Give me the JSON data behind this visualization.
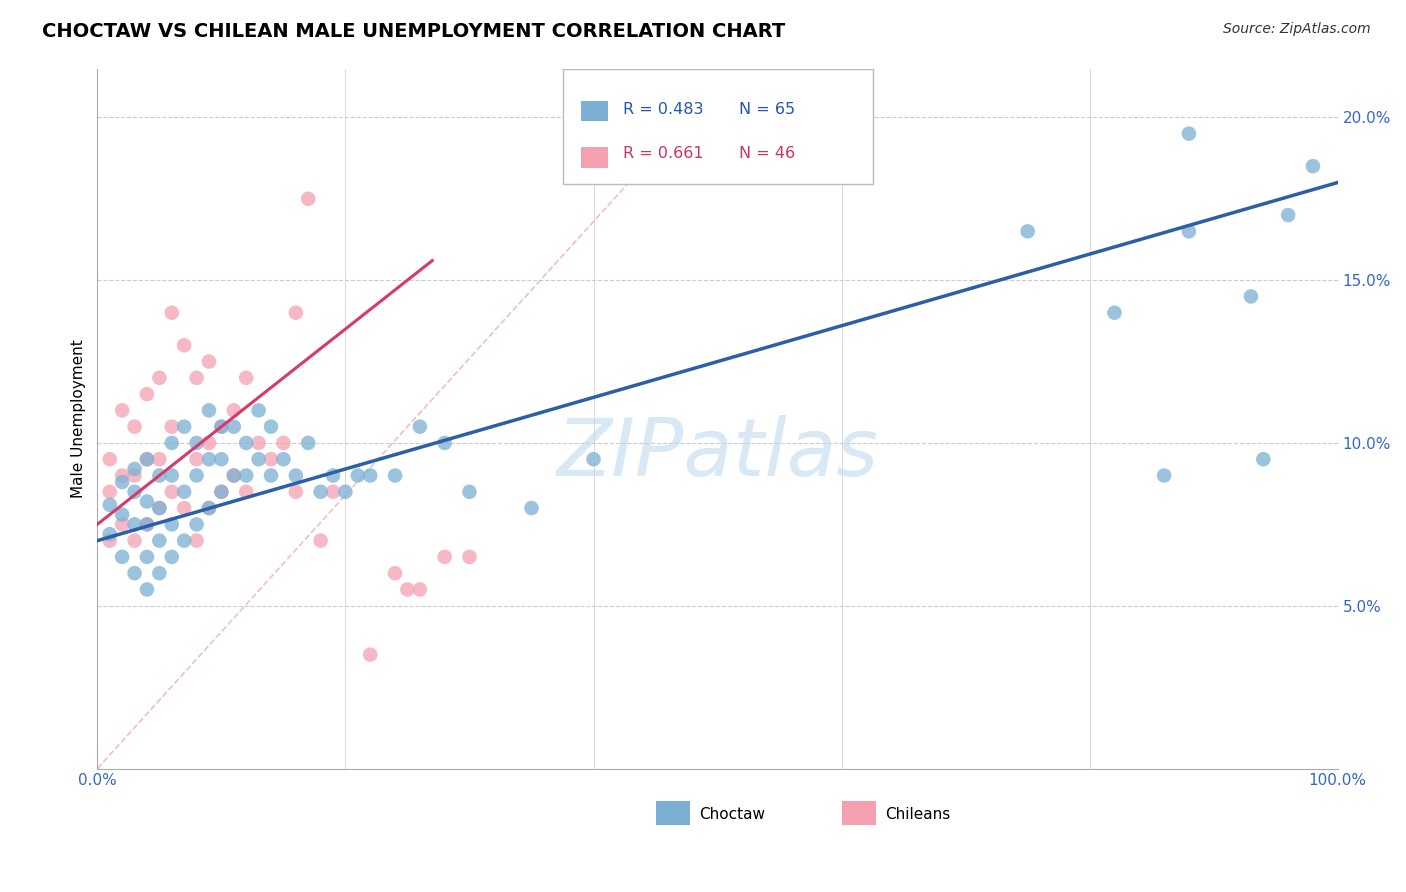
{
  "title": "CHOCTAW VS CHILEAN MALE UNEMPLOYMENT CORRELATION CHART",
  "source": "Source: ZipAtlas.com",
  "ylabel": "Male Unemployment",
  "xlim": [
    0.0,
    100.0
  ],
  "ylim": [
    0.0,
    21.5
  ],
  "blue_color": "#7BAFD4",
  "pink_color": "#F4A0B0",
  "blue_line_color": "#2B5FA8",
  "pink_line_color": "#D63A6A",
  "diag_color": "#E8B0BB",
  "grid_color": "#CCCCCC",
  "watermark": "ZIPatlas",
  "watermark_color": "#BEDAEE",
  "legend_R1": "R = 0.483",
  "legend_N1": "N = 65",
  "legend_R2": "R = 0.661",
  "legend_N2": "N = 46",
  "legend_label1": "Choctaw",
  "legend_label2": "Chileans",
  "blue_scatter_x": [
    1,
    1,
    2,
    2,
    2,
    3,
    3,
    3,
    3,
    4,
    4,
    4,
    4,
    4,
    5,
    5,
    5,
    5,
    6,
    6,
    6,
    6,
    7,
    7,
    7,
    8,
    8,
    8,
    9,
    9,
    9,
    10,
    10,
    10,
    11,
    11,
    12,
    12,
    13,
    13,
    14,
    14,
    15,
    16,
    17,
    18,
    19,
    20,
    21,
    22,
    24,
    26,
    28,
    30,
    35,
    40,
    75,
    82,
    86,
    88,
    88,
    93,
    94,
    96,
    98
  ],
  "blue_scatter_y": [
    7.2,
    8.1,
    6.5,
    7.8,
    8.8,
    6.0,
    7.5,
    8.5,
    9.2,
    5.5,
    6.5,
    7.5,
    8.2,
    9.5,
    6.0,
    7.0,
    8.0,
    9.0,
    6.5,
    7.5,
    9.0,
    10.0,
    7.0,
    8.5,
    10.5,
    7.5,
    9.0,
    10.0,
    8.0,
    9.5,
    11.0,
    8.5,
    9.5,
    10.5,
    9.0,
    10.5,
    9.0,
    10.0,
    9.5,
    11.0,
    9.0,
    10.5,
    9.5,
    9.0,
    10.0,
    8.5,
    9.0,
    8.5,
    9.0,
    9.0,
    9.0,
    10.5,
    10.0,
    8.5,
    8.0,
    9.5,
    16.5,
    14.0,
    9.0,
    19.5,
    16.5,
    14.5,
    9.5,
    17.0,
    18.5
  ],
  "pink_scatter_x": [
    1,
    1,
    1,
    2,
    2,
    2,
    3,
    3,
    3,
    4,
    4,
    4,
    5,
    5,
    5,
    6,
    6,
    6,
    7,
    7,
    8,
    8,
    8,
    9,
    9,
    9,
    10,
    10,
    11,
    11,
    12,
    12,
    13,
    14,
    15,
    16,
    16,
    17,
    18,
    19,
    22,
    24,
    25,
    26,
    28,
    30
  ],
  "pink_scatter_y": [
    7.0,
    8.5,
    9.5,
    7.5,
    9.0,
    11.0,
    7.0,
    9.0,
    10.5,
    7.5,
    9.5,
    11.5,
    8.0,
    9.5,
    12.0,
    8.5,
    10.5,
    14.0,
    8.0,
    13.0,
    7.0,
    9.5,
    12.0,
    8.0,
    10.0,
    12.5,
    8.5,
    10.5,
    9.0,
    11.0,
    8.5,
    12.0,
    10.0,
    9.5,
    10.0,
    8.5,
    14.0,
    17.5,
    7.0,
    8.5,
    3.5,
    6.0,
    5.5,
    5.5,
    6.5,
    6.5
  ]
}
